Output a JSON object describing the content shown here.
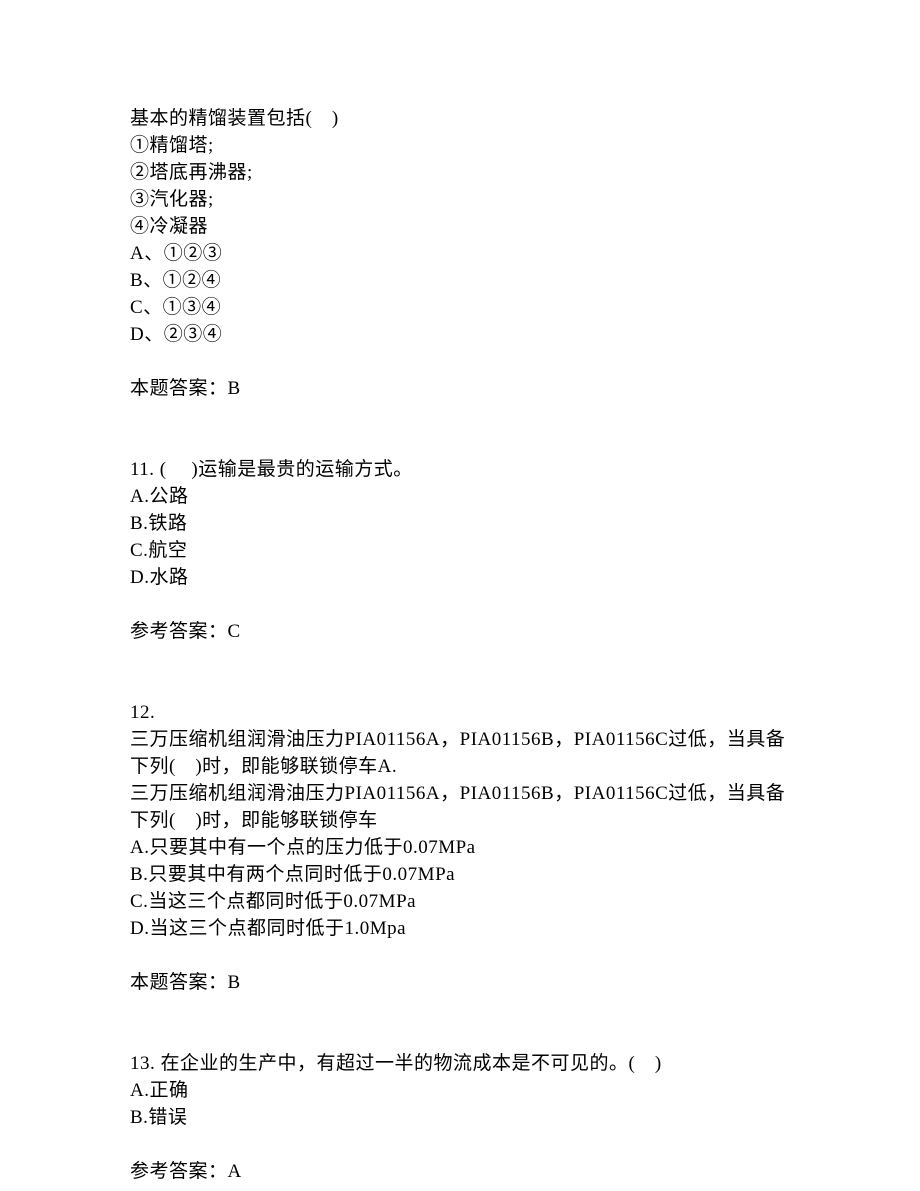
{
  "q10": {
    "stem": "基本的精馏装置包括(　)",
    "item1": "①精馏塔;",
    "item2": "②塔底再沸器;",
    "item3": "③汽化器;",
    "item4": "④冷凝器",
    "optA": "A、①②③",
    "optB": "B、①②④",
    "optC": "C、①③④",
    "optD": "D、②③④",
    "answerLabel": "本题答案：B"
  },
  "q11": {
    "stem": "11. (　 )运输是最贵的运输方式。",
    "optA": "A.公路",
    "optB": "B.铁路",
    "optC": "C.航空",
    "optD": "D.水路",
    "answerLabel": "参考答案：C"
  },
  "q12": {
    "num": "12.",
    "stem1": "三万压缩机组润滑油压力PIA01156A，PIA01156B，PIA01156C过低，当具备下列(　)时，即能够联锁停车A.",
    "stem2": "三万压缩机组润滑油压力PIA01156A，PIA01156B，PIA01156C过低，当具备下列(　)时，即能够联锁停车",
    "optA": "A.只要其中有一个点的压力低于0.07MPa",
    "optB": "B.只要其中有两个点同时低于0.07MPa",
    "optC": "C.当这三个点都同时低于0.07MPa",
    "optD": "D.当这三个点都同时低于1.0Mpa",
    "answerLabel": "本题答案：B"
  },
  "q13": {
    "stem": "13. 在企业的生产中，有超过一半的物流成本是不可见的。(　)",
    "optA": "A.正确",
    "optB": "B.错误",
    "answerLabel": "参考答案：A"
  }
}
